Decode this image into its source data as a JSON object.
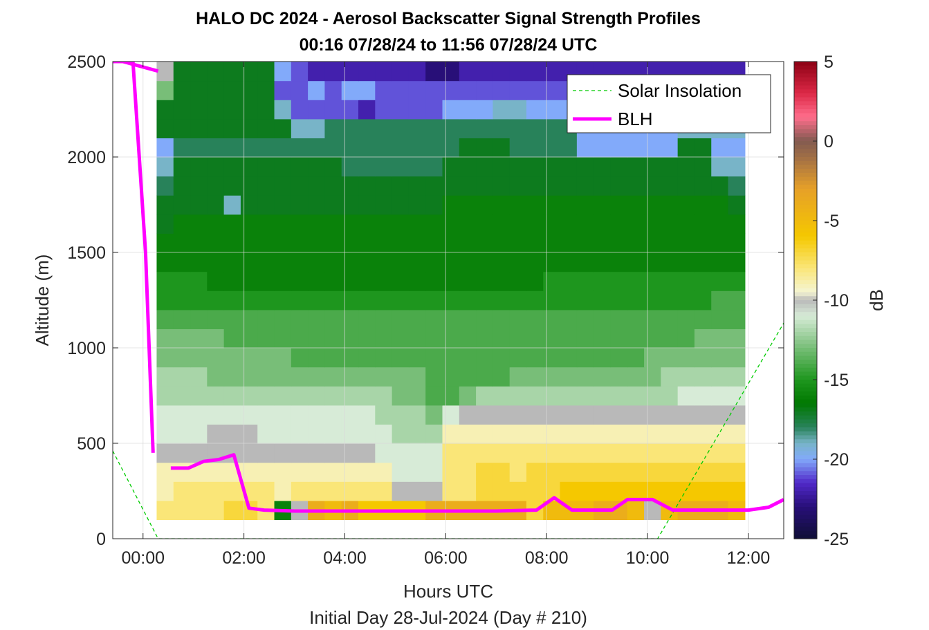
{
  "chart_data": {
    "type": "heatmap",
    "title": "HALO DC 2024 - Aerosol Backscatter Signal Strength Profiles",
    "subtitle": "00:16 07/28/24 to 11:56 07/28/24  UTC",
    "xlabel": "Hours UTC",
    "xlabel_secondary": "Initial Day 28-Jul-2024 (Day # 210)",
    "ylabel": "Altitude (m)",
    "colorbar_label": "dB",
    "xlim": [
      -0.6,
      12.7
    ],
    "ylim": [
      0,
      2500
    ],
    "x_ticks": [
      0,
      2,
      4,
      6,
      8,
      10,
      12
    ],
    "x_tick_labels": [
      "00:00",
      "02:00",
      "04:00",
      "06:00",
      "08:00",
      "10:00",
      "12:00"
    ],
    "y_ticks": [
      0,
      500,
      1000,
      1500,
      2000,
      2500
    ],
    "y_tick_labels": [
      "0",
      "500",
      "1000",
      "1500",
      "2000",
      "2500"
    ],
    "clim": [
      -25,
      5
    ],
    "colorbar_ticks": [
      5,
      0,
      -5,
      -10,
      -15,
      -20,
      -25
    ],
    "colorbar_tick_labels": [
      "5",
      "0",
      "-5",
      "-10",
      "-15",
      "-20",
      "-25"
    ],
    "grid": true,
    "legend_position": "top-right",
    "heatmap": {
      "time_start": 0.27,
      "time_end": 11.93,
      "alt_start": 100,
      "alt_end": 2500,
      "time_bins": 35,
      "alt_bins": 24,
      "description_rows_from_bottom": [
        [
          -8,
          -8,
          -8,
          -8,
          -7,
          -7,
          -8,
          -16,
          -10,
          -4,
          -5,
          -4,
          -6,
          -6,
          -6,
          -6,
          -4,
          -4,
          -4,
          -4,
          -4,
          -4,
          -7,
          -5,
          -5,
          -5,
          -4,
          -4,
          -5,
          -10,
          -5,
          -4,
          -4,
          -4,
          -5
        ],
        [
          -9,
          -8,
          -8,
          -8,
          -8,
          -8,
          -8,
          -9,
          -8,
          -8,
          -8,
          -8,
          -8,
          -8,
          -10,
          -10,
          -10,
          -8,
          -8,
          -7,
          -7,
          -7,
          -7,
          -7,
          -6,
          -6,
          -6,
          -6,
          -6,
          -6,
          -6,
          -6,
          -6,
          -6,
          -6
        ],
        [
          -9,
          -9,
          -9,
          -9,
          -9,
          -9,
          -9,
          -9,
          -9,
          -9,
          -9,
          -9,
          -9,
          -9,
          -11,
          -11,
          -11,
          -8,
          -8,
          -7,
          -7,
          -8,
          -7,
          -7,
          -7,
          -7,
          -7,
          -7,
          -7,
          -7,
          -7,
          -7,
          -7,
          -7,
          -7
        ],
        [
          -10,
          -10,
          -10,
          -10,
          -10,
          -10,
          -10,
          -10,
          -10,
          -10,
          -10,
          -10,
          -10,
          -11,
          -11,
          -11,
          -11,
          -8,
          -8,
          -8,
          -8,
          -8,
          -8,
          -8,
          -8,
          -8,
          -8,
          -8,
          -8,
          -8,
          -8,
          -8,
          -8,
          -8,
          -8
        ],
        [
          -11,
          -11,
          -11,
          -10,
          -10,
          -10,
          -11,
          -11,
          -11,
          -11,
          -11,
          -11,
          -11,
          -11,
          -12,
          -12,
          -12,
          -9,
          -9,
          -9,
          -9,
          -9,
          -9,
          -9,
          -9,
          -9,
          -9,
          -9,
          -9,
          -9,
          -9,
          -9,
          -9,
          -9,
          -9
        ],
        [
          -11,
          -11,
          -11,
          -11,
          -11,
          -11,
          -11,
          -11,
          -11,
          -11,
          -11,
          -11,
          -11,
          -12,
          -12,
          -12,
          -13,
          -11,
          -10,
          -10,
          -10,
          -10,
          -10,
          -10,
          -10,
          -10,
          -10,
          -10,
          -10,
          -10,
          -10,
          -10,
          -10,
          -10,
          -10
        ],
        [
          -12,
          -12,
          -12,
          -12,
          -12,
          -12,
          -12,
          -12,
          -12,
          -12,
          -12,
          -12,
          -12,
          -12,
          -13,
          -13,
          -14,
          -14,
          -13,
          -12,
          -12,
          -12,
          -12,
          -12,
          -12,
          -12,
          -12,
          -12,
          -12,
          -12,
          -12,
          -11,
          -11,
          -11,
          -11
        ],
        [
          -12,
          -12,
          -12,
          -13,
          -13,
          -13,
          -13,
          -13,
          -13,
          -13,
          -13,
          -13,
          -13,
          -13,
          -13,
          -13,
          -14,
          -14,
          -14,
          -14,
          -14,
          -13,
          -13,
          -13,
          -13,
          -13,
          -13,
          -13,
          -13,
          -13,
          -12,
          -12,
          -12,
          -12,
          -12
        ],
        [
          -13,
          -13,
          -13,
          -13,
          -13,
          -13,
          -13,
          -13,
          -14,
          -14,
          -14,
          -14,
          -14,
          -14,
          -14,
          -14,
          -14,
          -14,
          -14,
          -14,
          -14,
          -14,
          -14,
          -14,
          -14,
          -14,
          -14,
          -14,
          -14,
          -13,
          -13,
          -13,
          -13,
          -13,
          -13
        ],
        [
          -13,
          -13,
          -13,
          -13,
          -14,
          -14,
          -14,
          -14,
          -14,
          -14,
          -14,
          -14,
          -14,
          -14,
          -14,
          -14,
          -14,
          -14,
          -14,
          -14,
          -14,
          -14,
          -14,
          -14,
          -14,
          -14,
          -14,
          -14,
          -14,
          -14,
          -14,
          -14,
          -13,
          -13,
          -13
        ],
        [
          -14,
          -14,
          -14,
          -14,
          -14,
          -14,
          -14,
          -14,
          -14,
          -14,
          -14,
          -14,
          -14,
          -14,
          -14,
          -14,
          -14,
          -14,
          -14,
          -14,
          -14,
          -14,
          -14,
          -14,
          -14,
          -14,
          -14,
          -14,
          -14,
          -14,
          -14,
          -14,
          -14,
          -14,
          -14
        ],
        [
          -15,
          -15,
          -15,
          -15,
          -15,
          -15,
          -15,
          -15,
          -15,
          -15,
          -15,
          -15,
          -15,
          -15,
          -15,
          -15,
          -15,
          -15,
          -15,
          -15,
          -15,
          -15,
          -15,
          -15,
          -15,
          -15,
          -15,
          -15,
          -15,
          -15,
          -15,
          -15,
          -15,
          -14,
          -14
        ],
        [
          -15,
          -15,
          -15,
          -16,
          -16,
          -16,
          -16,
          -16,
          -16,
          -16,
          -16,
          -16,
          -16,
          -16,
          -16,
          -16,
          -16,
          -16,
          -16,
          -16,
          -16,
          -16,
          -16,
          -15,
          -15,
          -15,
          -15,
          -15,
          -15,
          -15,
          -15,
          -15,
          -15,
          -15,
          -15
        ],
        [
          -16,
          -16,
          -16,
          -16,
          -16,
          -16,
          -16,
          -16,
          -16,
          -16,
          -16,
          -16,
          -16,
          -16,
          -16,
          -16,
          -16,
          -16,
          -16,
          -16,
          -16,
          -16,
          -16,
          -16,
          -16,
          -16,
          -16,
          -16,
          -16,
          -16,
          -16,
          -16,
          -16,
          -16,
          -16
        ],
        [
          -16,
          -16,
          -16,
          -16,
          -16,
          -16,
          -16,
          -16,
          -16,
          -16,
          -16,
          -16,
          -16,
          -16,
          -16,
          -16,
          -16,
          -16,
          -16,
          -16,
          -16,
          -16,
          -16,
          -16,
          -16,
          -16,
          -16,
          -16,
          -16,
          -16,
          -16,
          -16,
          -16,
          -16,
          -16
        ],
        [
          -17,
          -16,
          -16,
          -16,
          -16,
          -16,
          -16,
          -16,
          -16,
          -16,
          -16,
          -16,
          -16,
          -16,
          -16,
          -16,
          -16,
          -16,
          -16,
          -16,
          -16,
          -16,
          -16,
          -16,
          -16,
          -16,
          -16,
          -16,
          -16,
          -16,
          -16,
          -16,
          -16,
          -16,
          -16
        ],
        [
          -17,
          -17,
          -17,
          -17,
          -19,
          -17,
          -17,
          -17,
          -17,
          -17,
          -17,
          -17,
          -17,
          -17,
          -17,
          -17,
          -17,
          -16,
          -16,
          -16,
          -16,
          -16,
          -16,
          -16,
          -16,
          -16,
          -16,
          -16,
          -16,
          -16,
          -16,
          -16,
          -16,
          -16,
          -17
        ],
        [
          -18,
          -17,
          -17,
          -17,
          -17,
          -17,
          -17,
          -17,
          -17,
          -17,
          -17,
          -17,
          -17,
          -17,
          -17,
          -17,
          -17,
          -17,
          -17,
          -17,
          -17,
          -17,
          -17,
          -17,
          -17,
          -17,
          -17,
          -17,
          -17,
          -17,
          -17,
          -17,
          -17,
          -17,
          -18
        ],
        [
          -19,
          -17,
          -17,
          -17,
          -17,
          -17,
          -17,
          -17,
          -17,
          -17,
          -17,
          -18,
          -18,
          -18,
          -18,
          -18,
          -18,
          -17,
          -17,
          -17,
          -17,
          -17,
          -17,
          -17,
          -17,
          -17,
          -17,
          -17,
          -17,
          -17,
          -17,
          -17,
          -17,
          -19,
          -19
        ],
        [
          -20,
          -18,
          -18,
          -18,
          -18,
          -18,
          -18,
          -18,
          -18,
          -18,
          -18,
          -18,
          -18,
          -18,
          -18,
          -18,
          -18,
          -18,
          -17,
          -17,
          -17,
          -18,
          -18,
          -18,
          -18,
          -20,
          -20,
          -20,
          -20,
          -20,
          -20,
          -17,
          -17,
          -20,
          -20
        ],
        [
          -17,
          -17,
          -17,
          -17,
          -17,
          -17,
          -17,
          -17,
          -19,
          -19,
          -18,
          -18,
          -18,
          -18,
          -18,
          -18,
          -18,
          -18,
          -18,
          -18,
          -18,
          -18,
          -18,
          -18,
          -18,
          -20,
          -20,
          -20,
          -20,
          -20,
          -20,
          -19,
          -19,
          -19,
          -19
        ],
        [
          -17,
          -17,
          -17,
          -17,
          -17,
          -17,
          -17,
          -19,
          -21,
          -21,
          -21,
          -21,
          -22,
          -21,
          -21,
          -21,
          -21,
          -20,
          -20,
          -20,
          -19,
          -19,
          -20,
          -20,
          -20,
          -20,
          -20,
          -20,
          -20,
          -20,
          -20,
          -21,
          -22,
          -20,
          -20
        ],
        [
          -13,
          -17,
          -17,
          -17,
          -17,
          -17,
          -17,
          -21,
          -21,
          -20,
          -21,
          -20,
          -20,
          -21,
          -21,
          -21,
          -21,
          -21,
          -21,
          -21,
          -21,
          -21,
          -21,
          -21,
          -21,
          -21,
          -21,
          -21,
          -21,
          -21,
          -21,
          -21,
          -21,
          -21,
          -21
        ],
        [
          -10,
          -17,
          -17,
          -17,
          -17,
          -17,
          -17,
          -20,
          -21,
          -22,
          -22,
          -22,
          -22,
          -22,
          -22,
          -22,
          -23,
          -23,
          -22,
          -22,
          -22,
          -22,
          -22,
          -22,
          -22,
          -22,
          -22,
          -22,
          -22,
          -22,
          -22,
          -22,
          -22,
          -22,
          -22
        ]
      ]
    },
    "series": [
      {
        "name": "Solar Insolation",
        "color": "#00cc00",
        "style": "dashed",
        "x": [
          -0.6,
          0.3,
          10.2,
          12.7
        ],
        "y": [
          460,
          0,
          0,
          1130
        ]
      },
      {
        "name": "BLH",
        "color": "#ff00ff",
        "style": "solid",
        "segments": [
          {
            "x": [
              -0.6,
              -0.4,
              0.3
            ],
            "y": [
              2500,
              2500,
              2450
            ]
          },
          {
            "x": [
              -0.2,
              0.05,
              0.2
            ],
            "y": [
              2500,
              1500,
              450
            ]
          },
          {
            "x": [
              0.55,
              0.9,
              1.2,
              1.5,
              1.8,
              2.1,
              2.4,
              3.0,
              3.5,
              4.0,
              5.0,
              6.0,
              7.0,
              7.8,
              8.15,
              8.5,
              9.0,
              9.3,
              9.6,
              10.1,
              10.5,
              11.0,
              11.5,
              12.0,
              12.4,
              12.7
            ],
            "y": [
              370,
              370,
              405,
              415,
              440,
              160,
              150,
              145,
              145,
              145,
              145,
              145,
              145,
              150,
              215,
              150,
              150,
              150,
              205,
              205,
              150,
              150,
              150,
              150,
              165,
              205
            ]
          }
        ]
      }
    ]
  }
}
